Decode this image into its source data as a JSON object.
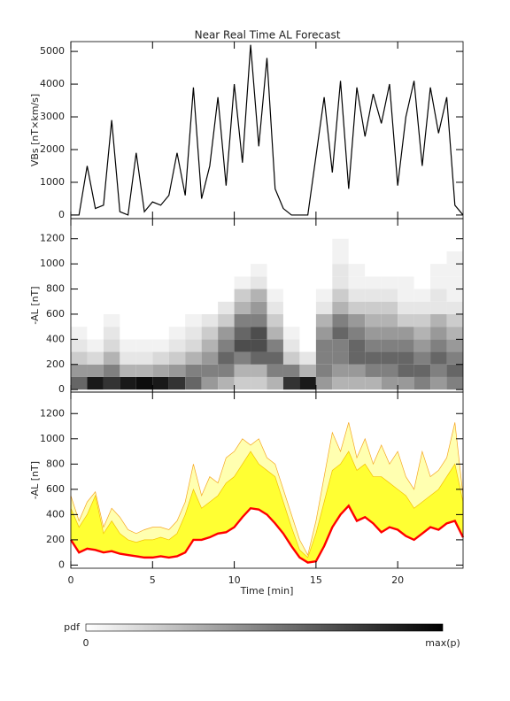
{
  "chart_data": [
    {
      "type": "line",
      "title": "Near Real Time AL Forecast",
      "ylabel": "VBs [nT×km/s]",
      "color": "#000000",
      "xlim": [
        0,
        24
      ],
      "xticks": [
        0,
        5,
        10,
        15,
        20
      ],
      "show_xtick_labels": false,
      "ylim": [
        -110,
        5300
      ],
      "yticks": [
        0,
        1000,
        2000,
        3000,
        4000,
        5000
      ],
      "x": [
        0,
        0.5,
        1,
        1.5,
        2,
        2.5,
        3,
        3.5,
        4,
        4.5,
        5,
        5.5,
        6,
        6.5,
        7,
        7.5,
        8,
        8.5,
        9,
        9.5,
        10,
        10.5,
        11,
        11.5,
        12,
        12.5,
        13,
        13.5,
        14,
        14.5,
        15,
        15.5,
        16,
        16.5,
        17,
        17.5,
        18,
        18.5,
        19,
        19.5,
        20,
        20.5,
        21,
        21.5,
        22,
        22.5,
        23,
        23.5,
        24
      ],
      "values": [
        0,
        0,
        1500,
        200,
        300,
        2900,
        100,
        0,
        1900,
        100,
        400,
        300,
        600,
        1900,
        600,
        3900,
        500,
        1500,
        3600,
        900,
        4000,
        1600,
        5200,
        2100,
        4800,
        800,
        200,
        0,
        0,
        0,
        1800,
        3600,
        1300,
        4100,
        800,
        3900,
        2400,
        3700,
        2800,
        4000,
        900,
        3000,
        4100,
        1500,
        3900,
        2500,
        3600,
        300,
        0
      ]
    },
    {
      "type": "heatmap",
      "ylabel": "-AL [nT]",
      "xlim": [
        0,
        24
      ],
      "xticks": [
        0,
        5,
        10,
        15,
        20
      ],
      "show_xtick_labels": false,
      "ylim": [
        -20,
        1360
      ],
      "yticks": [
        0,
        200,
        400,
        600,
        800,
        1000,
        1200
      ],
      "xbins": [
        0,
        1,
        2,
        3,
        4,
        5,
        6,
        7,
        8,
        9,
        10,
        11,
        12,
        13,
        14,
        15,
        16,
        17,
        18,
        19,
        20,
        21,
        22,
        23,
        24
      ],
      "ybins": [
        0,
        100,
        200,
        300,
        400,
        500,
        600,
        700,
        800,
        900,
        1000,
        1100,
        1200
      ],
      "z": [
        [
          0.6,
          0.4,
          0.2,
          0.1,
          0.05,
          0,
          0,
          0,
          0,
          0,
          0,
          0
        ],
        [
          0.9,
          0.4,
          0.15,
          0.05,
          0,
          0,
          0,
          0,
          0,
          0,
          0,
          0
        ],
        [
          0.8,
          0.5,
          0.3,
          0.15,
          0.1,
          0.05,
          0,
          0,
          0,
          0,
          0,
          0
        ],
        [
          0.9,
          0.3,
          0.1,
          0.05,
          0,
          0,
          0,
          0,
          0,
          0,
          0,
          0
        ],
        [
          0.95,
          0.3,
          0.1,
          0.05,
          0,
          0,
          0,
          0,
          0,
          0,
          0,
          0
        ],
        [
          0.9,
          0.35,
          0.15,
          0.05,
          0,
          0,
          0,
          0,
          0,
          0,
          0,
          0
        ],
        [
          0.8,
          0.4,
          0.2,
          0.1,
          0.05,
          0,
          0,
          0,
          0,
          0,
          0,
          0
        ],
        [
          0.6,
          0.5,
          0.3,
          0.15,
          0.1,
          0.05,
          0,
          0,
          0,
          0,
          0,
          0
        ],
        [
          0.4,
          0.5,
          0.4,
          0.3,
          0.2,
          0.1,
          0,
          0,
          0,
          0,
          0,
          0
        ],
        [
          0.3,
          0.5,
          0.6,
          0.5,
          0.4,
          0.2,
          0.1,
          0,
          0,
          0,
          0,
          0
        ],
        [
          0.2,
          0.3,
          0.5,
          0.7,
          0.6,
          0.5,
          0.3,
          0.2,
          0.05,
          0,
          0,
          0
        ],
        [
          0.2,
          0.3,
          0.6,
          0.7,
          0.7,
          0.5,
          0.4,
          0.3,
          0.1,
          0.05,
          0,
          0
        ],
        [
          0.3,
          0.5,
          0.6,
          0.5,
          0.3,
          0.2,
          0.1,
          0.05,
          0,
          0,
          0,
          0
        ],
        [
          0.8,
          0.5,
          0.2,
          0.1,
          0.05,
          0,
          0,
          0,
          0,
          0,
          0,
          0
        ],
        [
          0.9,
          0.3,
          0.1,
          0,
          0,
          0,
          0,
          0,
          0,
          0,
          0,
          0
        ],
        [
          0.4,
          0.5,
          0.5,
          0.5,
          0.4,
          0.3,
          0.1,
          0.05,
          0,
          0,
          0,
          0
        ],
        [
          0.3,
          0.4,
          0.5,
          0.5,
          0.6,
          0.5,
          0.3,
          0.2,
          0.1,
          0.1,
          0.05,
          0.05
        ],
        [
          0.3,
          0.4,
          0.6,
          0.6,
          0.5,
          0.4,
          0.2,
          0.1,
          0.05,
          0.05,
          0,
          0
        ],
        [
          0.3,
          0.5,
          0.6,
          0.5,
          0.4,
          0.3,
          0.2,
          0.1,
          0.05,
          0,
          0,
          0
        ],
        [
          0.4,
          0.5,
          0.6,
          0.5,
          0.4,
          0.3,
          0.2,
          0.1,
          0.05,
          0,
          0,
          0
        ],
        [
          0.4,
          0.6,
          0.6,
          0.5,
          0.4,
          0.2,
          0.1,
          0.05,
          0.05,
          0,
          0,
          0
        ],
        [
          0.5,
          0.6,
          0.5,
          0.4,
          0.3,
          0.2,
          0.1,
          0.05,
          0,
          0,
          0,
          0
        ],
        [
          0.4,
          0.5,
          0.6,
          0.5,
          0.4,
          0.3,
          0.1,
          0.1,
          0.05,
          0.05,
          0,
          0
        ],
        [
          0.5,
          0.6,
          0.5,
          0.4,
          0.3,
          0.2,
          0.1,
          0.05,
          0.05,
          0.05,
          0.05,
          0
        ]
      ],
      "colorbar": {
        "label": "pdf",
        "min_label": "0",
        "max_label": "max(p)"
      }
    },
    {
      "type": "area",
      "ylabel": "-AL [nT]",
      "xlabel": "Time [min]",
      "xlim": [
        0,
        24
      ],
      "xticks": [
        0,
        5,
        10,
        15,
        20
      ],
      "show_xtick_labels": true,
      "ylim": [
        -25,
        1370
      ],
      "yticks": [
        0,
        200,
        400,
        600,
        800,
        1000,
        1200
      ],
      "x": [
        0,
        0.5,
        1,
        1.5,
        2,
        2.5,
        3,
        3.5,
        4,
        4.5,
        5,
        5.5,
        6,
        6.5,
        7,
        7.5,
        8,
        8.5,
        9,
        9.5,
        10,
        10.5,
        11,
        11.5,
        12,
        12.5,
        13,
        13.5,
        14,
        14.5,
        15,
        15.5,
        16,
        16.5,
        17,
        17.5,
        18,
        18.5,
        19,
        19.5,
        20,
        20.5,
        21,
        21.5,
        22,
        22.5,
        23,
        23.5,
        24
      ],
      "bands": [
        {
          "color": "#ffffb0",
          "edge": "#f5a623",
          "high": [
            550,
            350,
            500,
            580,
            300,
            450,
            380,
            280,
            250,
            280,
            300,
            300,
            280,
            350,
            500,
            800,
            550,
            700,
            650,
            850,
            900,
            1000,
            950,
            1000,
            850,
            800,
            600,
            400,
            200,
            80,
            350,
            700,
            1050,
            900,
            1130,
            850,
            1000,
            800,
            950,
            800,
            900,
            700,
            600,
            900,
            700,
            750,
            850,
            1130,
            550
          ]
        },
        {
          "color": "#ffff33",
          "edge": "#f5c000",
          "high": [
            450,
            300,
            400,
            550,
            250,
            350,
            250,
            200,
            180,
            200,
            200,
            220,
            200,
            250,
            400,
            600,
            450,
            500,
            550,
            650,
            700,
            800,
            900,
            800,
            750,
            700,
            500,
            300,
            120,
            60,
            250,
            500,
            750,
            800,
            900,
            750,
            800,
            700,
            700,
            650,
            600,
            550,
            450,
            500,
            550,
            600,
            700,
            800,
            500
          ]
        }
      ],
      "line": {
        "color": "#ff0000",
        "values": [
          200,
          100,
          130,
          120,
          100,
          110,
          90,
          80,
          70,
          60,
          60,
          70,
          60,
          70,
          100,
          200,
          200,
          220,
          250,
          260,
          300,
          380,
          450,
          440,
          400,
          330,
          250,
          150,
          60,
          20,
          30,
          150,
          300,
          400,
          470,
          350,
          380,
          330,
          260,
          300,
          280,
          230,
          200,
          250,
          300,
          280,
          330,
          350,
          220
        ]
      }
    }
  ]
}
